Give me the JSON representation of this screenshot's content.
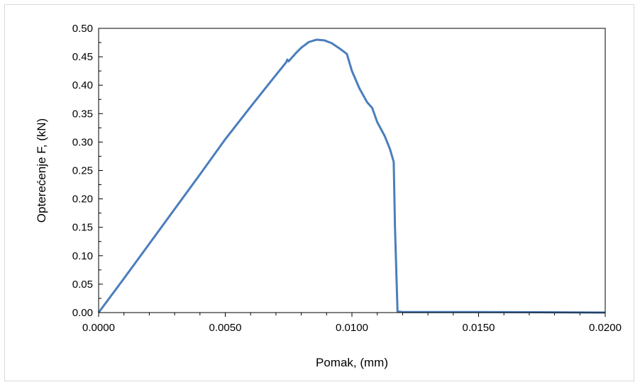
{
  "chart_data": {
    "type": "line",
    "title": "",
    "xlabel": "Pomak, (mm)",
    "ylabel": "Opterećenje F, (kN)",
    "xlim": [
      0,
      0.02
    ],
    "ylim": [
      0,
      0.5
    ],
    "grid": false,
    "legend": "none",
    "x_ticks": [
      0,
      0.005,
      0.01,
      0.015,
      0.02
    ],
    "x_tick_labels": [
      "0.0000",
      "0.0050",
      "0.0100",
      "0.0150",
      "0.0200"
    ],
    "y_ticks": [
      0,
      0.05,
      0.1,
      0.15,
      0.2,
      0.25,
      0.3,
      0.35,
      0.4,
      0.45,
      0.5
    ],
    "y_tick_labels": [
      "0.00",
      "0.05",
      "0.10",
      "0.15",
      "0.20",
      "0.25",
      "0.30",
      "0.35",
      "0.40",
      "0.45",
      "0.50"
    ],
    "series": [
      {
        "color": "#4a7ebb",
        "points": [
          [
            0,
            0
          ],
          [
            0.001,
            0.06
          ],
          [
            0.002,
            0.121
          ],
          [
            0.003,
            0.182
          ],
          [
            0.004,
            0.243
          ],
          [
            0.005,
            0.305
          ],
          [
            0.006,
            0.362
          ],
          [
            0.007,
            0.418
          ],
          [
            0.0074,
            0.44
          ],
          [
            0.00745,
            0.445
          ],
          [
            0.0075,
            0.442
          ],
          [
            0.0078,
            0.457
          ],
          [
            0.008,
            0.466
          ],
          [
            0.0083,
            0.476
          ],
          [
            0.0086,
            0.48
          ],
          [
            0.0089,
            0.479
          ],
          [
            0.0092,
            0.474
          ],
          [
            0.0095,
            0.465
          ],
          [
            0.0098,
            0.455
          ],
          [
            0.01,
            0.425
          ],
          [
            0.0103,
            0.394
          ],
          [
            0.0106,
            0.37
          ],
          [
            0.0108,
            0.36
          ],
          [
            0.011,
            0.335
          ],
          [
            0.0113,
            0.31
          ],
          [
            0.0115,
            0.288
          ],
          [
            0.01165,
            0.265
          ],
          [
            0.0117,
            0.15
          ],
          [
            0.0118,
            0.002
          ],
          [
            0.012,
            0.001
          ],
          [
            0.015,
            0.001
          ],
          [
            0.018,
            0.0005
          ],
          [
            0.02,
            0
          ]
        ]
      }
    ]
  }
}
